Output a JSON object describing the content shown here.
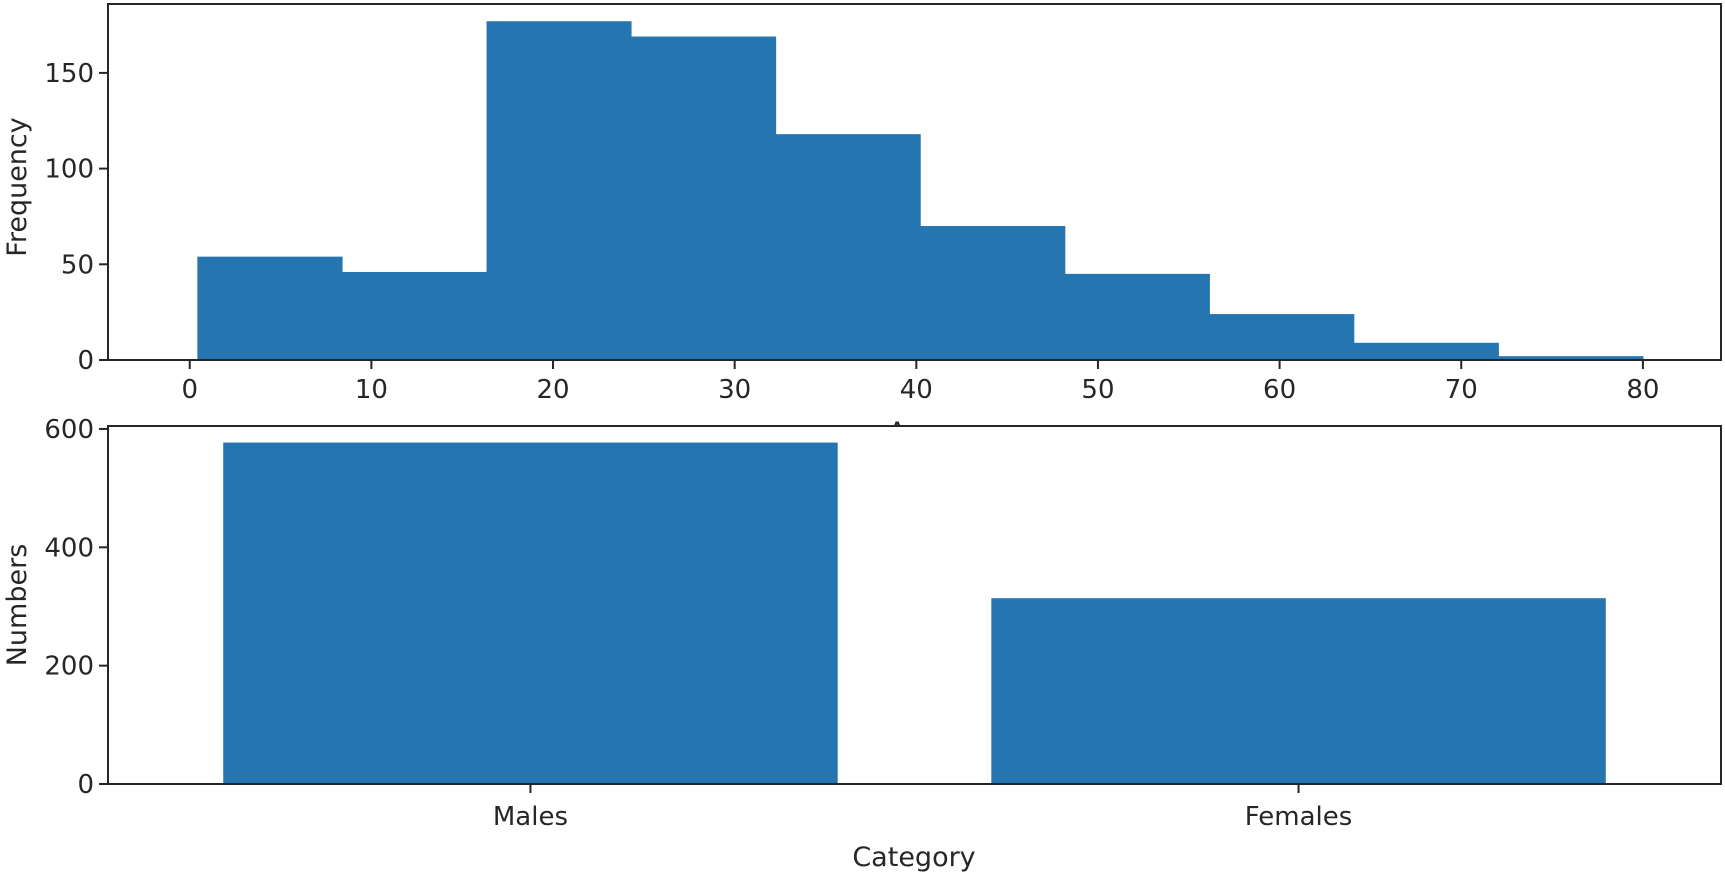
{
  "chart_data": [
    {
      "type": "bar",
      "chart_kind": "histogram",
      "bins": [
        {
          "x0": 0.42,
          "x1": 8.38,
          "count": 54
        },
        {
          "x0": 8.38,
          "x1": 16.34,
          "count": 46
        },
        {
          "x0": 16.34,
          "x1": 24.29,
          "count": 177
        },
        {
          "x0": 24.29,
          "x1": 32.25,
          "count": 169
        },
        {
          "x0": 32.25,
          "x1": 40.21,
          "count": 118
        },
        {
          "x0": 40.21,
          "x1": 48.17,
          "count": 70
        },
        {
          "x0": 48.17,
          "x1": 56.13,
          "count": 45
        },
        {
          "x0": 56.13,
          "x1": 64.08,
          "count": 24
        },
        {
          "x0": 64.08,
          "x1": 72.04,
          "count": 9
        },
        {
          "x0": 72.04,
          "x1": 80.0,
          "count": 2
        }
      ],
      "xlabel": "Age",
      "ylabel": "Frequency",
      "xlim": [
        -4.5,
        84.3
      ],
      "ylim": [
        0,
        186
      ],
      "xticks": [
        "0",
        "10",
        "20",
        "30",
        "40",
        "50",
        "60",
        "70",
        "80"
      ],
      "yticks": [
        "0",
        "50",
        "100",
        "150"
      ],
      "bar_color": "#2575b0",
      "grid": false
    },
    {
      "type": "bar",
      "categories": [
        "Males",
        "Females"
      ],
      "values": [
        577,
        314
      ],
      "xlabel": "Category",
      "ylabel": "Numbers",
      "ylim": [
        0,
        605
      ],
      "yticks": [
        "0",
        "200",
        "400",
        "600"
      ],
      "bar_color": "#2575b0",
      "grid": false
    }
  ]
}
